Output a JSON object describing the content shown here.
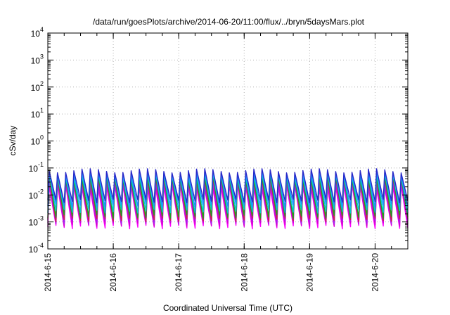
{
  "chart_data": {
    "type": "line",
    "title": "/data/run/goesPlots/archive/2014-06-20/11:00/flux/../bryn/5daysMars.plot",
    "xlabel": "Coordinated Universal Time (UTC)",
    "ylabel": "cSv/day",
    "x_tick_labels": [
      "2014-6-15",
      "2014-6-16",
      "2014-6-17",
      "2014-6-18",
      "2014-6-19",
      "2014-6-20"
    ],
    "y_tick_labels": [
      {
        "base": "10",
        "exp": "-4"
      },
      {
        "base": "10",
        "exp": "-3"
      },
      {
        "base": "10",
        "exp": "-2"
      },
      {
        "base": "10",
        "exp": "-1"
      },
      {
        "base": "10",
        "exp": "0"
      },
      {
        "base": "10",
        "exp": "1"
      },
      {
        "base": "10",
        "exp": "2"
      },
      {
        "base": "10",
        "exp": "3"
      },
      {
        "base": "10",
        "exp": "4"
      }
    ],
    "xlim": [
      "2014-06-15T00:00",
      "2014-06-20T12:00"
    ],
    "ylim": [
      0.0001,
      10000
    ],
    "yscale": "log",
    "grid": true,
    "period_hours": 3,
    "series": [
      {
        "color": "#ff00ff",
        "peak": 0.02,
        "trough": 0.00065
      },
      {
        "color": "#d100d1",
        "peak": 0.025,
        "trough": 0.0008
      },
      {
        "color": "#a020f0",
        "peak": 0.03,
        "trough": 0.001
      },
      {
        "color": "#cc2244",
        "peak": 0.04,
        "trough": 0.0012
      },
      {
        "color": "#20a020",
        "peak": 0.045,
        "trough": 0.0016
      },
      {
        "color": "#00cccc",
        "peak": 0.055,
        "trough": 0.0025
      },
      {
        "color": "#1e90ff",
        "peak": 0.065,
        "trough": 0.004
      },
      {
        "color": "#2828c8",
        "peak": 0.08,
        "trough": 0.006
      }
    ]
  }
}
